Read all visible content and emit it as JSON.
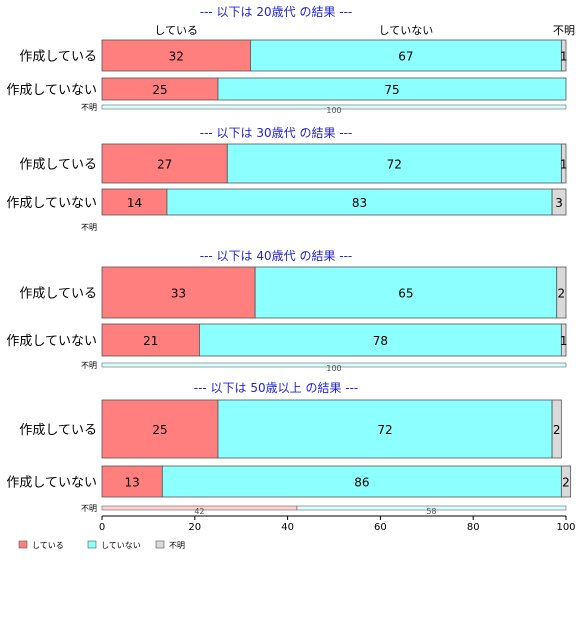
{
  "colors": {
    "yes": "#ff7f7f",
    "no": "#8cffff",
    "unknown": "#d9d9d9",
    "heading": "#2222dd"
  },
  "chart_data": {
    "type": "bar",
    "orientation": "horizontal",
    "stacked": true,
    "xlim": [
      0,
      100
    ],
    "xticks": [
      "0",
      "20",
      "40",
      "60",
      "80",
      "100"
    ],
    "column_headers": [
      "している",
      "していない",
      "不明"
    ],
    "legend": [
      "している",
      "していない",
      "不明"
    ],
    "legend_position": "bottom-left",
    "panels": [
      {
        "heading": "--- 以下は 20歳代 の結果 ---",
        "rows": [
          {
            "label": "作成している",
            "values": [
              32,
              67,
              1
            ]
          },
          {
            "label": "作成していない",
            "values": [
              25,
              75,
              0
            ]
          }
        ],
        "unknown_row": {
          "label": "不明",
          "values": [
            0,
            100,
            0
          ]
        }
      },
      {
        "heading": "--- 以下は 30歳代 の結果 ---",
        "rows": [
          {
            "label": "作成している",
            "values": [
              27,
              72,
              1
            ]
          },
          {
            "label": "作成していない",
            "values": [
              14,
              83,
              3
            ]
          }
        ],
        "unknown_row": {
          "label": "不明",
          "values": null
        }
      },
      {
        "heading": "--- 以下は 40歳代 の結果 ---",
        "rows": [
          {
            "label": "作成している",
            "values": [
              33,
              65,
              2
            ]
          },
          {
            "label": "作成していない",
            "values": [
              21,
              78,
              1
            ]
          }
        ],
        "unknown_row": {
          "label": "不明",
          "values": [
            0,
            100,
            0
          ]
        }
      },
      {
        "heading": "--- 以下は 50歳以上 の結果 ---",
        "rows": [
          {
            "label": "作成している",
            "values": [
              25,
              72,
              2
            ]
          },
          {
            "label": "作成していない",
            "values": [
              13,
              86,
              2
            ]
          }
        ],
        "unknown_row": {
          "label": "不明",
          "values": [
            42,
            58,
            0
          ]
        }
      }
    ]
  }
}
